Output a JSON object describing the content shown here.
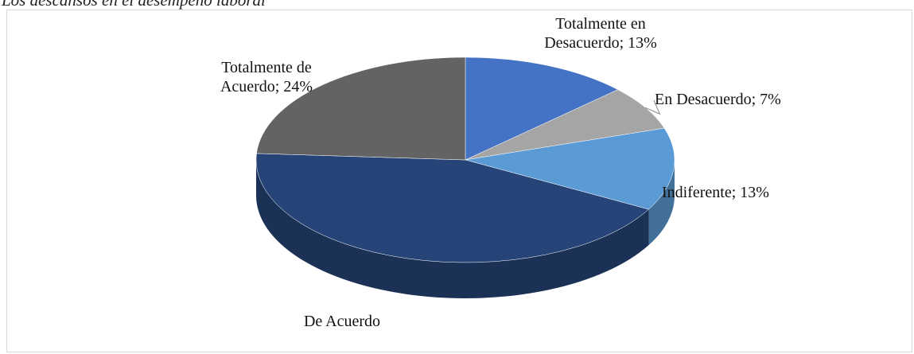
{
  "chart_data": {
    "type": "pie3d",
    "title": "Los descansos en el desempeño laboral",
    "values": [
      13,
      7,
      13,
      43,
      24
    ],
    "value_labels": [
      "Totalmente en Desacuerdo; 13%",
      "En Desacuerdo; 7%",
      "Indiferente; 13%",
      "De Acuerdo",
      "Totalmente de Acuerdo; 24%"
    ],
    "colors": [
      "#4472c4",
      "#a5a5a5",
      "#5b9bd5",
      "#264478",
      "#636363"
    ]
  }
}
